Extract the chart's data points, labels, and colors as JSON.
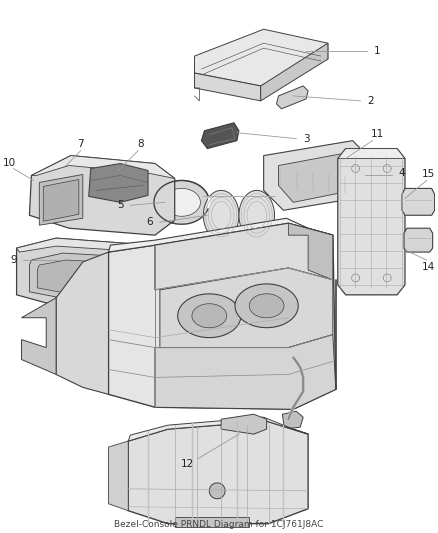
{
  "background_color": "#ffffff",
  "line_color": "#404040",
  "label_color": "#222222",
  "figsize": [
    4.38,
    5.33
  ],
  "dpi": 100,
  "subtitle": "Bezel-Console PRNDL Diagram for 1CJ761J8AC"
}
